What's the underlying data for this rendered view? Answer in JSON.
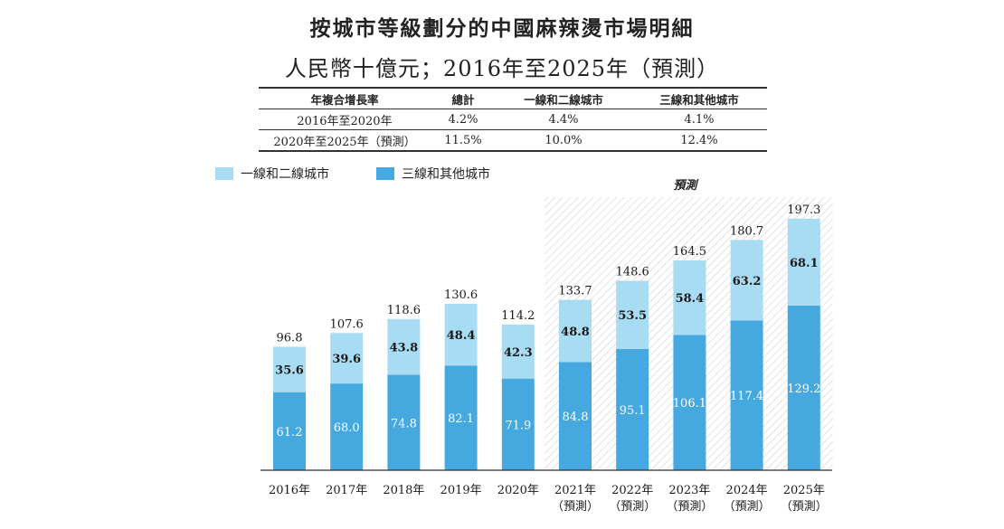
{
  "title": "按城市等級劃分的中國麻辣燙市場明細",
  "subtitle": "人民幣十億元；2016年至2025年（預測）",
  "cagr_table": {
    "headers": [
      "年複合增長率",
      "總計",
      "一線和二線城市",
      "三線和其他城市"
    ],
    "rows": [
      [
        "2016年至2020年",
        "4.2%",
        "4.4%",
        "4.1%"
      ],
      [
        "2020年至2025年（預測）",
        "11.5%",
        "10.0%",
        "12.4%"
      ]
    ]
  },
  "colors": {
    "tier12": "#a8dcf2",
    "tier3": "#45a9e0",
    "hatch": "#c9c9c9"
  },
  "chart_data": {
    "type": "bar",
    "stacked": true,
    "categories": [
      "2016年",
      "2017年",
      "2018年",
      "2019年",
      "2020年",
      "2021年",
      "2022年",
      "2023年",
      "2024年",
      "2025年"
    ],
    "category_sublabels": [
      "",
      "",
      "",
      "",
      "",
      "（預測）",
      "（預測）",
      "（預測）",
      "（預測）",
      "（預測）"
    ],
    "forecast_label": "預測",
    "forecast_categories": [
      "2021年",
      "2022年",
      "2023年",
      "2024年",
      "2025年"
    ],
    "series": [
      {
        "name": "三線和其他城市",
        "values": [
          61.2,
          68.0,
          74.8,
          82.1,
          71.9,
          84.8,
          95.1,
          106.1,
          117.4,
          129.2
        ]
      },
      {
        "name": "一線和二線城市",
        "values": [
          35.6,
          39.6,
          43.8,
          48.4,
          42.3,
          48.8,
          53.5,
          58.4,
          63.2,
          68.1
        ]
      }
    ],
    "totals": [
      96.8,
      107.6,
      118.6,
      130.6,
      114.2,
      133.7,
      148.6,
      164.5,
      180.7,
      197.3
    ],
    "legend": [
      "一線和二線城市",
      "三線和其他城市"
    ],
    "legend_position": "top-left",
    "ylim": [
      0,
      200
    ],
    "grid": false
  }
}
